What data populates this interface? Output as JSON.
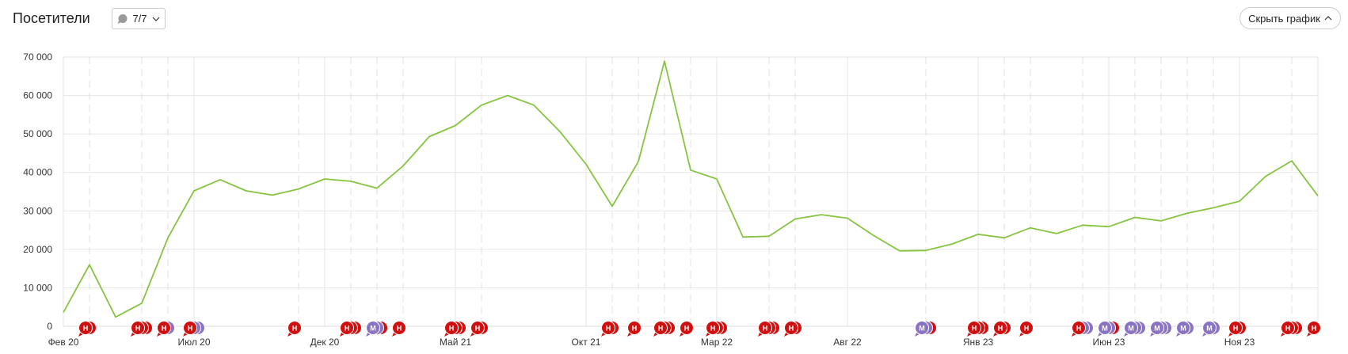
{
  "header": {
    "title": "Посетители",
    "filter_label": "7/7",
    "filter_icon": "comment-bubble-icon",
    "hide_chart_label": "Скрыть график",
    "hide_chart_icon": "chevron-up-icon"
  },
  "chart_data": {
    "type": "line",
    "title": "",
    "xlabel": "",
    "ylabel": "",
    "ylim": [
      0,
      70000
    ],
    "yticks": [
      "0",
      "10 000",
      "20 000",
      "30 000",
      "40 000",
      "50 000",
      "60 000",
      "70 000"
    ],
    "ytick_values": [
      0,
      10000,
      20000,
      30000,
      40000,
      50000,
      60000,
      70000
    ],
    "grid": true,
    "x": [
      "2020-02",
      "2020-03",
      "2020-04",
      "2020-05",
      "2020-06",
      "2020-07",
      "2020-08",
      "2020-09",
      "2020-10",
      "2020-11",
      "2020-12",
      "2021-01",
      "2021-02",
      "2021-03",
      "2021-04",
      "2021-05",
      "2021-06",
      "2021-07",
      "2021-08",
      "2021-09",
      "2021-10",
      "2021-11",
      "2021-12",
      "2022-01",
      "2022-02",
      "2022-03",
      "2022-04",
      "2022-05",
      "2022-06",
      "2022-07",
      "2022-08",
      "2022-09",
      "2022-10",
      "2022-11",
      "2022-12",
      "2023-01",
      "2023-02",
      "2023-03",
      "2023-04",
      "2023-05",
      "2023-06",
      "2023-07",
      "2023-08",
      "2023-09",
      "2023-10",
      "2023-11",
      "2023-12",
      "2024-01",
      "2024-02"
    ],
    "xticks": [
      {
        "month": "2020-02",
        "label": "Фев 20"
      },
      {
        "month": "2020-07",
        "label": "Июл 20"
      },
      {
        "month": "2020-12",
        "label": "Дек 20"
      },
      {
        "month": "2021-05",
        "label": "Май 21"
      },
      {
        "month": "2021-10",
        "label": "Окт 21"
      },
      {
        "month": "2022-03",
        "label": "Мар 22"
      },
      {
        "month": "2022-08",
        "label": "Авг 22"
      },
      {
        "month": "2023-01",
        "label": "Янв 23"
      },
      {
        "month": "2023-06",
        "label": "Июн 23"
      },
      {
        "month": "2023-11",
        "label": "Ноя 23"
      }
    ],
    "series": [
      {
        "color": "#86c440",
        "values": [
          3600,
          16000,
          2400,
          6000,
          23000,
          35200,
          38100,
          35200,
          34100,
          35700,
          38300,
          37700,
          35900,
          41700,
          49300,
          52200,
          57500,
          60000,
          57500,
          50600,
          42100,
          31200,
          42800,
          68900,
          40600,
          38300,
          23200,
          23400,
          27900,
          29000,
          28100,
          23600,
          19600,
          19700,
          21400,
          23900,
          23000,
          25600,
          24100,
          26300,
          25900,
          28300,
          27400,
          29400,
          30800,
          32500,
          39000,
          43000,
          33900
        ]
      }
    ],
    "annotation_colors": {
      "Н": "#d20f0f",
      "М": "#8a72c4"
    },
    "annotations": [
      {
        "month": "2020-03",
        "letter": "Н",
        "stack": [
          "Н"
        ]
      },
      {
        "month": "2020-05",
        "letter": "Н",
        "stack": [
          "Н",
          "Н"
        ]
      },
      {
        "month": "2020-06",
        "letter": "Н",
        "stack": [
          "М"
        ]
      },
      {
        "month": "2020-07",
        "letter": "Н",
        "stack": [
          "М",
          "М"
        ]
      },
      {
        "month": "2020-11",
        "letter": "Н",
        "stack": []
      },
      {
        "month": "2021-01",
        "letter": "Н",
        "stack": [
          "Н",
          "Н"
        ]
      },
      {
        "month": "2021-02",
        "letter": "М",
        "stack": [
          "М",
          "Н"
        ]
      },
      {
        "month": "2021-03",
        "letter": "Н",
        "stack": []
      },
      {
        "month": "2021-05",
        "letter": "Н",
        "stack": [
          "Н",
          "Н"
        ]
      },
      {
        "month": "2021-06",
        "letter": "Н",
        "stack": [
          "Н"
        ]
      },
      {
        "month": "2021-11",
        "letter": "Н",
        "stack": [
          "Н"
        ]
      },
      {
        "month": "2021-12",
        "letter": "Н",
        "stack": []
      },
      {
        "month": "2022-01",
        "letter": "Н",
        "stack": [
          "Н",
          "Н"
        ]
      },
      {
        "month": "2022-02",
        "letter": "Н",
        "stack": []
      },
      {
        "month": "2022-03",
        "letter": "Н",
        "stack": [
          "Н",
          "Н"
        ]
      },
      {
        "month": "2022-05",
        "letter": "Н",
        "stack": [
          "Н",
          "Н"
        ]
      },
      {
        "month": "2022-06",
        "letter": "Н",
        "stack": [
          "Н"
        ]
      },
      {
        "month": "2022-11",
        "letter": "М",
        "stack": [
          "М",
          "Н"
        ]
      },
      {
        "month": "2023-01",
        "letter": "Н",
        "stack": [
          "Н",
          "Н"
        ]
      },
      {
        "month": "2023-02",
        "letter": "Н",
        "stack": [
          "Н"
        ]
      },
      {
        "month": "2023-03",
        "letter": "Н",
        "stack": []
      },
      {
        "month": "2023-05",
        "letter": "Н",
        "stack": [
          "М",
          "М"
        ]
      },
      {
        "month": "2023-06",
        "letter": "М",
        "stack": [
          "М",
          "Н"
        ]
      },
      {
        "month": "2023-07",
        "letter": "М",
        "stack": [
          "М",
          "М"
        ]
      },
      {
        "month": "2023-08",
        "letter": "М",
        "stack": [
          "М",
          "М"
        ]
      },
      {
        "month": "2023-09",
        "letter": "М",
        "stack": [
          "М"
        ]
      },
      {
        "month": "2023-10",
        "letter": "М",
        "stack": [
          "М"
        ]
      },
      {
        "month": "2023-11",
        "letter": "Н",
        "stack": [
          "Н"
        ]
      },
      {
        "month": "2024-01",
        "letter": "Н",
        "stack": [
          "Н",
          "Н"
        ]
      },
      {
        "month": "2024-02",
        "letter": "Н",
        "stack": []
      }
    ]
  }
}
